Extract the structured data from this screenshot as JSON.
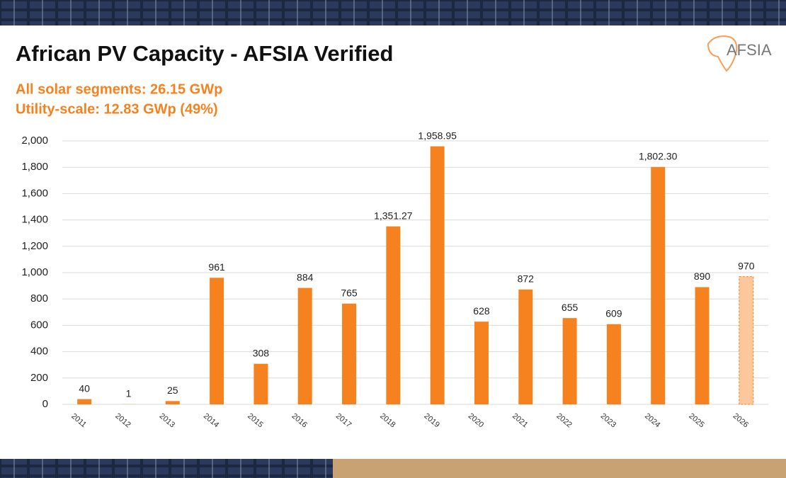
{
  "chart_data": {
    "type": "bar",
    "title": "African PV Capacity - AFSIA Verified",
    "subtitle": [
      "All solar segments: 26.15 GWp",
      "Utility-scale: 12.83 GWp (49%)"
    ],
    "logo": "AFSIA",
    "categories": [
      "2011",
      "2012",
      "2013",
      "2014",
      "2015",
      "2016",
      "2017",
      "2018",
      "2019",
      "2020",
      "2021",
      "2022",
      "2023",
      "2024",
      "2025",
      "2026"
    ],
    "values": [
      40,
      1,
      25,
      961,
      308,
      884,
      765,
      1351.27,
      1958.95,
      628,
      872,
      655,
      609,
      1802.3,
      890,
      970
    ],
    "value_labels": [
      "40",
      "1",
      "25",
      "961",
      "308",
      "884",
      "765",
      "1,351.27",
      "1,958.95",
      "628",
      "872",
      "655",
      "609",
      "1,802.30",
      "890",
      "970"
    ],
    "colors": [
      "#f5821f",
      "#f5821f",
      "#f5821f",
      "#f5821f",
      "#f5821f",
      "#f5821f",
      "#f5821f",
      "#f5821f",
      "#f5821f",
      "#f5821f",
      "#f5821f",
      "#f5821f",
      "#f5821f",
      "#f5821f",
      "#f5821f",
      "#fcc89b"
    ],
    "bar_styles": [
      "solid",
      "solid",
      "solid",
      "solid",
      "solid",
      "solid",
      "solid",
      "solid",
      "solid",
      "solid",
      "solid",
      "solid",
      "solid",
      "solid",
      "solid",
      "dashed"
    ],
    "ylim": [
      0,
      2000
    ],
    "yticks": [
      0,
      200,
      400,
      600,
      800,
      {
        "value": 1000,
        "label": "1,000"
      },
      {
        "value": 1200,
        "label": "1,200"
      },
      {
        "value": 1400,
        "label": "1,400"
      },
      {
        "value": 1600,
        "label": "1,600"
      },
      {
        "value": 1800,
        "label": "1,800"
      },
      {
        "value": 2000,
        "label": "2,000"
      }
    ],
    "grid": true
  }
}
